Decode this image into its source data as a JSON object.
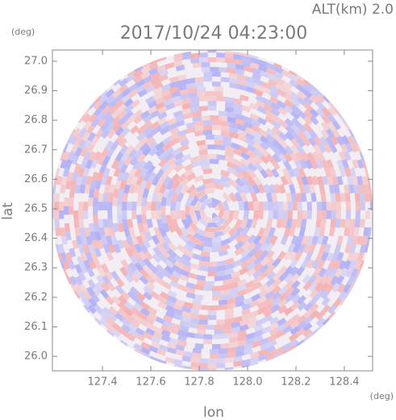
{
  "chart_data": {
    "type": "radar-ppi",
    "title": "2017/10/24 04:23:00",
    "subtitle": "ALT(km) 2.0",
    "x_label": "lon",
    "y_label": "lat",
    "x_unit": "(deg)",
    "y_unit": "(deg)",
    "xlim": [
      127.193,
      128.517
    ],
    "ylim": [
      25.951,
      27.038
    ],
    "xticks": [
      127.4,
      127.6,
      127.8,
      {
        "value": 128.0,
        "label": "128.0"
      },
      128.2,
      128.4
    ],
    "yticks": [
      {
        "value": 26.0,
        "label": "26.0"
      },
      26.1,
      26.2,
      26.3,
      26.4,
      26.5,
      26.6,
      26.7,
      26.8,
      26.9,
      {
        "value": 27.0,
        "label": "27.0"
      }
    ]
  }
}
